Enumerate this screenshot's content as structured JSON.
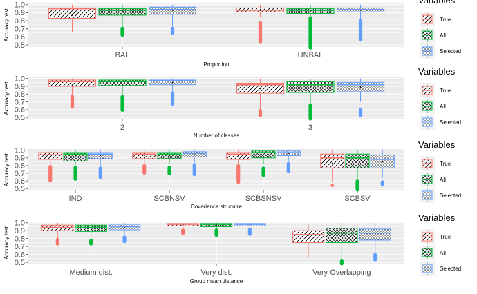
{
  "colors": {
    "true": "#F8766D",
    "all": "#00BA38",
    "selected": "#619CFF",
    "panel_bg": "#EBEBEB",
    "grid": "#FFFFFF",
    "axis_text": "#4D4D4D"
  },
  "legend": {
    "title": "Variables",
    "entries": [
      {
        "key": "true",
        "label": "True"
      },
      {
        "key": "all",
        "label": "All"
      },
      {
        "key": "selected",
        "label": "Selected"
      }
    ]
  },
  "chart_data": [
    {
      "type": "boxplot",
      "ylabel": "Accuracy test",
      "xlabel": "Proportion",
      "ylim": [
        0.475,
        1.015
      ],
      "yticks": [
        0.5,
        0.6,
        0.7,
        0.8,
        0.9,
        1.0
      ],
      "ytick_labels": [
        "0.5",
        "0.6",
        "0.7",
        "0.8",
        "0.9",
        "1.0"
      ],
      "grid": true,
      "legend_position": "right",
      "categories": [
        "BAL",
        "UNBAL"
      ],
      "series": [
        {
          "name": "True",
          "key": "true",
          "pattern": "diagonal",
          "boxes": [
            {
              "wlo": 0.66,
              "q1": 0.83,
              "med": 0.95,
              "q3": 0.96,
              "whi": 1.0,
              "mean": 0.87,
              "out": []
            },
            {
              "wlo": 0.85,
              "q1": 0.91,
              "med": 0.93,
              "q3": 0.96,
              "whi": 1.0,
              "mean": 0.93,
              "out": [
                [
                  0.53,
                  0.78
                ]
              ]
            }
          ]
        },
        {
          "name": "All",
          "key": "all",
          "pattern": "crosshatch",
          "boxes": [
            {
              "wlo": 0.72,
              "q1": 0.87,
              "med": 0.93,
              "q3": 0.95,
              "whi": 1.0,
              "mean": 0.92,
              "out": [
                [
                  0.62,
                  0.71
                ]
              ]
            },
            {
              "wlo": 0.85,
              "q1": 0.89,
              "med": 0.93,
              "q3": 0.95,
              "whi": 1.0,
              "mean": 0.92,
              "out": [
                [
                  0.46,
                  0.84
                ]
              ]
            }
          ]
        },
        {
          "name": "Selected",
          "key": "selected",
          "pattern": "dots",
          "boxes": [
            {
              "wlo": 0.73,
              "q1": 0.88,
              "med": 0.94,
              "q3": 0.97,
              "whi": 1.0,
              "mean": 0.93,
              "out": [
                [
                  0.64,
                  0.71
                ]
              ]
            },
            {
              "wlo": 0.82,
              "q1": 0.91,
              "med": 0.94,
              "q3": 0.96,
              "whi": 1.0,
              "mean": 0.93,
              "out": [
                [
                  0.56,
                  0.81
                ]
              ]
            }
          ]
        }
      ]
    },
    {
      "type": "boxplot",
      "ylabel": "Accuracy test",
      "xlabel": "Number of classes",
      "ylim": [
        0.475,
        1.015
      ],
      "yticks": [
        0.5,
        0.6,
        0.7,
        0.8,
        0.9,
        1.0
      ],
      "ytick_labels": [
        "0.5",
        "0.6",
        "0.7",
        "0.8",
        "0.9",
        "1.0"
      ],
      "grid": true,
      "legend_position": "right",
      "categories": [
        "2",
        "3"
      ],
      "series": [
        {
          "name": "True",
          "key": "true",
          "pattern": "diagonal",
          "boxes": [
            {
              "wlo": 0.8,
              "q1": 0.9,
              "med": 0.96,
              "q3": 0.98,
              "whi": 1.0,
              "mean": 0.93,
              "out": [
                [
                  0.63,
                  0.78
                ]
              ]
            },
            {
              "wlo": 0.6,
              "q1": 0.81,
              "med": 0.92,
              "q3": 0.94,
              "whi": 1.0,
              "mean": 0.87,
              "out": [
                [
                  0.52,
                  0.59
                ]
              ]
            }
          ]
        },
        {
          "name": "All",
          "key": "all",
          "pattern": "crosshatch",
          "boxes": [
            {
              "wlo": 0.78,
              "q1": 0.91,
              "med": 0.96,
              "q3": 0.98,
              "whi": 1.0,
              "mean": 0.93,
              "out": [
                [
                  0.59,
                  0.77
                ]
              ]
            },
            {
              "wlo": 0.67,
              "q1": 0.82,
              "med": 0.92,
              "q3": 0.96,
              "whi": 1.0,
              "mean": 0.89,
              "out": [
                [
                  0.48,
                  0.66
                ]
              ]
            }
          ]
        },
        {
          "name": "Selected",
          "key": "selected",
          "pattern": "dots",
          "boxes": [
            {
              "wlo": 0.82,
              "q1": 0.92,
              "med": 0.97,
              "q3": 0.98,
              "whi": 1.0,
              "mean": 0.95,
              "out": [
                [
                  0.67,
                  0.81
                ]
              ]
            },
            {
              "wlo": 0.7,
              "q1": 0.83,
              "med": 0.92,
              "q3": 0.95,
              "whi": 1.0,
              "mean": 0.89,
              "out": [
                [
                  0.52,
                  0.61
                ]
              ]
            }
          ]
        }
      ]
    },
    {
      "type": "boxplot",
      "ylabel": "Accuracy test",
      "xlabel": "Covariance strucutre",
      "ylim": [
        0.475,
        1.015
      ],
      "yticks": [
        0.5,
        0.6,
        0.7,
        0.8,
        0.9,
        1.0
      ],
      "ytick_labels": [
        "0.5",
        "0.6",
        "0.7",
        "0.8",
        "0.9",
        "1.0"
      ],
      "grid": true,
      "legend_position": "right",
      "categories": [
        "IND",
        "SCBNSV",
        "SCBSNSV",
        "SCBSV"
      ],
      "series": [
        {
          "name": "True",
          "key": "true",
          "pattern": "diagonal",
          "boxes": [
            {
              "wlo": 0.81,
              "q1": 0.88,
              "med": 0.94,
              "q3": 0.97,
              "whi": 1.0,
              "mean": 0.92,
              "out": [
                [
                  0.6,
                  0.79
                ]
              ]
            },
            {
              "wlo": 0.82,
              "q1": 0.89,
              "med": 0.95,
              "q3": 0.97,
              "whi": 1.0,
              "mean": 0.93,
              "out": [
                [
                  0.7,
                  0.8
                ]
              ]
            },
            {
              "wlo": 0.81,
              "q1": 0.88,
              "med": 0.95,
              "q3": 0.97,
              "whi": 1.0,
              "mean": 0.93,
              "out": [
                [
                  0.58,
                  0.8
                ]
              ]
            },
            {
              "wlo": 0.58,
              "q1": 0.77,
              "med": 0.9,
              "q3": 0.95,
              "whi": 1.0,
              "mean": 0.83,
              "out": [
                [
                  0.54,
                  0.54
                ]
              ]
            }
          ]
        },
        {
          "name": "All",
          "key": "all",
          "pattern": "crosshatch",
          "boxes": [
            {
              "wlo": 0.81,
              "q1": 0.86,
              "med": 0.95,
              "q3": 0.97,
              "whi": 1.0,
              "mean": 0.92,
              "out": [
                [
                  0.62,
                  0.78
                ]
              ]
            },
            {
              "wlo": 0.82,
              "q1": 0.89,
              "med": 0.95,
              "q3": 0.97,
              "whi": 1.0,
              "mean": 0.93,
              "out": [
                [
                  0.69,
                  0.78
                ]
              ]
            },
            {
              "wlo": 0.82,
              "q1": 0.9,
              "med": 0.97,
              "q3": 0.99,
              "whi": 1.0,
              "mean": 0.94,
              "out": [
                [
                  0.67,
                  0.77
                ]
              ]
            },
            {
              "wlo": 0.63,
              "q1": 0.77,
              "med": 0.9,
              "q3": 0.95,
              "whi": 1.0,
              "mean": 0.86,
              "out": [
                [
                  0.48,
                  0.6
                ]
              ]
            }
          ]
        },
        {
          "name": "Selected",
          "key": "selected",
          "pattern": "dots",
          "boxes": [
            {
              "wlo": 0.79,
              "q1": 0.89,
              "med": 0.95,
              "q3": 0.97,
              "whi": 1.0,
              "mean": 0.93,
              "out": [
                [
                  0.64,
                  0.77
                ]
              ]
            },
            {
              "wlo": 0.81,
              "q1": 0.91,
              "med": 0.96,
              "q3": 0.98,
              "whi": 1.0,
              "mean": 0.94,
              "out": [
                [
                  0.68,
                  0.81
                ]
              ]
            },
            {
              "wlo": 0.86,
              "q1": 0.93,
              "med": 0.97,
              "q3": 0.99,
              "whi": 1.0,
              "mean": 0.96,
              "out": [
                [
                  0.72,
                  0.83
                ]
              ]
            },
            {
              "wlo": 0.64,
              "q1": 0.77,
              "med": 0.88,
              "q3": 0.94,
              "whi": 1.0,
              "mean": 0.85,
              "out": [
                [
                  0.55,
                  0.59
                ]
              ]
            }
          ]
        }
      ]
    },
    {
      "type": "boxplot",
      "ylabel": "Accuracy test",
      "xlabel": "Group mean distance",
      "ylim": [
        0.475,
        1.015
      ],
      "yticks": [
        0.5,
        0.6,
        0.7,
        0.8,
        0.9,
        1.0
      ],
      "ytick_labels": [
        "0.5",
        "0.6",
        "0.7",
        "0.8",
        "0.9",
        "1.0"
      ],
      "grid": true,
      "legend_position": "right",
      "categories": [
        "Medium dist.",
        "Very dist.",
        "Very Overlapping"
      ],
      "series": [
        {
          "name": "True",
          "key": "true",
          "pattern": "diagonal",
          "boxes": [
            {
              "wlo": 0.8,
              "q1": 0.9,
              "med": 0.94,
              "q3": 0.97,
              "whi": 1.0,
              "mean": 0.93,
              "out": [
                [
                  0.73,
                  0.79
                ]
              ]
            },
            {
              "wlo": 0.92,
              "q1": 0.96,
              "med": 0.98,
              "q3": 0.99,
              "whi": 1.0,
              "mean": 0.97,
              "out": [
                [
                  0.86,
                  0.91
                ]
              ]
            },
            {
              "wlo": 0.55,
              "q1": 0.75,
              "med": 0.85,
              "q3": 0.9,
              "whi": 0.98,
              "mean": 0.84,
              "out": []
            }
          ]
        },
        {
          "name": "All",
          "key": "all",
          "pattern": "crosshatch",
          "boxes": [
            {
              "wlo": 0.79,
              "q1": 0.89,
              "med": 0.94,
              "q3": 0.97,
              "whi": 1.0,
              "mean": 0.93,
              "out": [
                [
                  0.73,
                  0.78
                ]
              ]
            },
            {
              "wlo": 0.92,
              "q1": 0.95,
              "med": 0.98,
              "q3": 0.99,
              "whi": 1.0,
              "mean": 0.97,
              "out": [
                [
                  0.84,
                  0.91
                ]
              ]
            },
            {
              "wlo": 0.54,
              "q1": 0.75,
              "med": 0.87,
              "q3": 0.93,
              "whi": 1.0,
              "mean": 0.85,
              "out": [
                [
                  0.48,
                  0.52
                ]
              ]
            }
          ]
        },
        {
          "name": "Selected",
          "key": "selected",
          "pattern": "dots",
          "boxes": [
            {
              "wlo": 0.83,
              "q1": 0.91,
              "med": 0.95,
              "q3": 0.98,
              "whi": 1.0,
              "mean": 0.94,
              "out": [
                [
                  0.76,
                  0.82
                ]
              ]
            },
            {
              "wlo": 0.93,
              "q1": 0.96,
              "med": 0.98,
              "q3": 0.99,
              "whi": 1.0,
              "mean": 0.98,
              "out": [
                [
                  0.85,
                  0.92
                ]
              ]
            },
            {
              "wlo": 0.62,
              "q1": 0.78,
              "med": 0.87,
              "q3": 0.92,
              "whi": 1.0,
              "mean": 0.86,
              "out": [
                [
                  0.53,
                  0.6
                ]
              ]
            }
          ]
        }
      ]
    }
  ]
}
